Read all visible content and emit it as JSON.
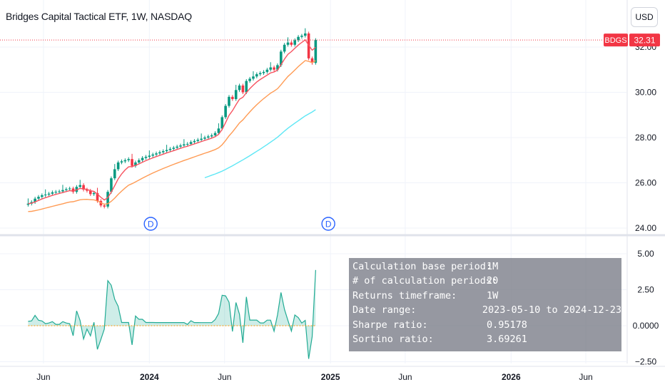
{
  "header": {
    "title": "Bridges Capital Tactical ETF, 1W, NASDAQ",
    "currency_button": "USD"
  },
  "price_badge": {
    "symbol": "BDGS",
    "price": "32.31",
    "color": "#f23645"
  },
  "colors": {
    "up": "#089981",
    "down": "#f23645",
    "ema_short": "#f7525f",
    "ema_long": "#ff9b54",
    "ma_long": "#5ee7f5",
    "returns_pos": "#22ab94",
    "returns_neg": "#ff9800",
    "dividend": "#2962ff"
  },
  "dividend_markers": [
    {
      "label": "D",
      "date": "2024-01-08"
    },
    {
      "label": "D",
      "date": "2025-01-01"
    }
  ],
  "stats_box": {
    "rows": [
      {
        "label": "Calculation base period:",
        "value": "1M"
      },
      {
        "label": "# of calculation periods:",
        "value": "20"
      },
      {
        "label": "Returns timeframe:",
        "value": "1W"
      },
      {
        "label": "Date range:",
        "value": "2023-05-10 to 2024-12-23"
      },
      {
        "label": "Sharpe ratio:",
        "value": "0.95178"
      },
      {
        "label": "Sortino ratio:",
        "value": "3.69261"
      }
    ]
  },
  "chart_data": [
    {
      "type": "candlestick",
      "series_name": "BDGS",
      "y_axis_ticks": [
        "24.00",
        "26.00",
        "28.00",
        "30.00",
        "32.00"
      ],
      "ylim": [
        23.7,
        33.5
      ],
      "x_axis_ticks": [
        {
          "label": "Jun",
          "date": "2023-06-01",
          "bold": false
        },
        {
          "label": "2024",
          "date": "2024-01-01",
          "bold": true
        },
        {
          "label": "Jun",
          "date": "2024-06-01",
          "bold": false
        },
        {
          "label": "2025",
          "date": "2025-01-01",
          "bold": true
        },
        {
          "label": "Jun",
          "date": "2025-06-01",
          "bold": false
        },
        {
          "label": "2026",
          "date": "2026-01-01",
          "bold": true
        },
        {
          "label": "Jun",
          "date": "2026-06-01",
          "bold": false
        }
      ],
      "xlim": [
        "2023-04-03",
        "2026-07-20"
      ],
      "last_price": 32.31,
      "close": [
        25.08,
        25.15,
        25.3,
        25.38,
        25.45,
        25.48,
        25.52,
        25.58,
        25.6,
        25.62,
        25.68,
        25.72,
        25.75,
        25.6,
        25.82,
        25.9,
        25.7,
        25.65,
        25.5,
        25.55,
        25.2,
        25.0,
        24.95,
        25.6,
        26.2,
        26.6,
        26.9,
        26.95,
        27.0,
        27.05,
        26.75,
        26.9,
        27.0,
        27.1,
        27.15,
        27.2,
        27.25,
        27.3,
        27.35,
        27.4,
        27.45,
        27.5,
        27.55,
        27.6,
        27.65,
        27.7,
        27.72,
        27.8,
        27.85,
        27.9,
        27.95,
        28.0,
        28.05,
        28.1,
        28.2,
        28.4,
        28.9,
        29.4,
        29.8,
        29.7,
        30.1,
        30.3,
        30.0,
        30.5,
        30.6,
        30.7,
        30.8,
        30.85,
        30.9,
        31.0,
        31.1,
        31.0,
        31.2,
        31.8,
        32.1,
        32.2,
        32.1,
        32.3,
        32.45,
        32.5,
        32.6,
        31.5,
        31.3,
        32.31
      ]
    },
    {
      "type": "line",
      "name": "rolling returns",
      "y_axis_ticks": [
        "5.00",
        "2.50",
        "0.0000",
        "−2.50"
      ],
      "ylim": [
        -2.5,
        5.0
      ]
    }
  ]
}
